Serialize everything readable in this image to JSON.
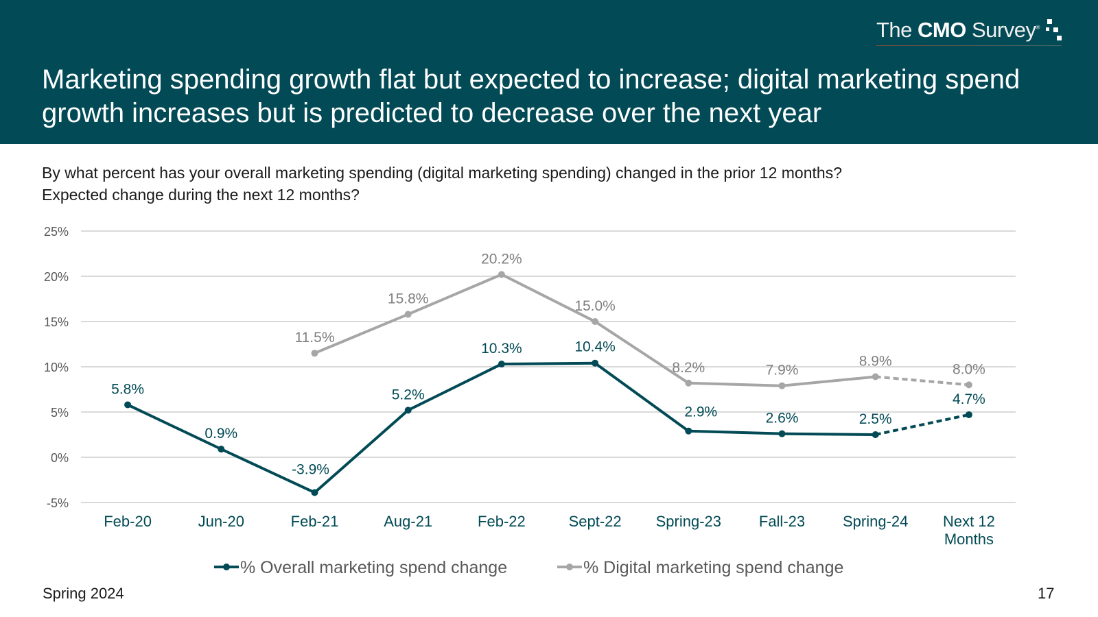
{
  "header": {
    "logo_pre": "The ",
    "logo_bold": "CMO",
    "logo_post": " Survey",
    "logo_mark": "®",
    "title": "Marketing spending growth flat but expected to increase; digital marketing spend growth increases but is predicted to decrease over the next year",
    "background": "#024a55"
  },
  "question": "By what percent has your overall marketing spending (digital marketing spending) changed in the prior 12 months? Expected change during the next 12 months?",
  "footer": {
    "left": "Spring 2024",
    "page_number": "17"
  },
  "chart_data": {
    "type": "line",
    "title": "",
    "xlabel": "",
    "ylabel": "",
    "ylim": [
      -5,
      25
    ],
    "yticks": [
      -5,
      0,
      5,
      10,
      15,
      20,
      25
    ],
    "ytick_labels": [
      "-5%",
      "0%",
      "5%",
      "10%",
      "15%",
      "20%",
      "25%"
    ],
    "grid": true,
    "legend_position": "bottom",
    "categories": [
      "Feb-20",
      "Jun-20",
      "Feb-21",
      "Aug-21",
      "Feb-22",
      "Sept-22",
      "Spring-23",
      "Fall-23",
      "Spring-24",
      "Next 12 Months"
    ],
    "category_lines": [
      [
        "Feb-20"
      ],
      [
        "Jun-20"
      ],
      [
        "Feb-21"
      ],
      [
        "Aug-21"
      ],
      [
        "Feb-22"
      ],
      [
        "Sept-22"
      ],
      [
        "Spring-23"
      ],
      [
        "Fall-23"
      ],
      [
        "Spring-24"
      ],
      [
        "Next 12",
        "Months"
      ]
    ],
    "series": [
      {
        "name": "% Overall marketing spend change",
        "color": "#024a55",
        "values": [
          5.8,
          0.9,
          -3.9,
          5.2,
          10.3,
          10.4,
          2.9,
          2.6,
          2.5,
          4.7
        ],
        "labels": [
          "5.8%",
          "0.9%",
          "-3.9%",
          "5.2%",
          "10.3%",
          "10.4%",
          "2.9%",
          "2.6%",
          "2.5%",
          "4.7%"
        ],
        "dashed_from_index": 8
      },
      {
        "name": "% Digital marketing spend change",
        "color": "#a6a6a6",
        "values": [
          null,
          null,
          11.5,
          15.8,
          20.2,
          15.0,
          8.2,
          7.9,
          8.9,
          8.0
        ],
        "labels": [
          null,
          null,
          "11.5%",
          "15.8%",
          "20.2%",
          "15.0%",
          "8.2%",
          "7.9%",
          "8.9%",
          "8.0%"
        ],
        "dashed_from_index": 8
      }
    ]
  }
}
